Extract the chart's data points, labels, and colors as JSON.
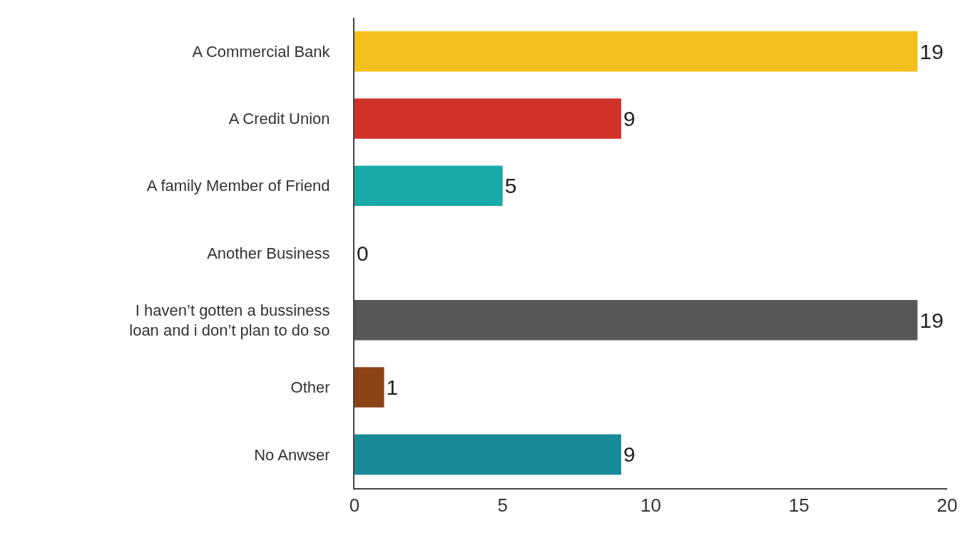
{
  "chart_data": {
    "type": "bar",
    "orientation": "horizontal",
    "categories": [
      "A Commercial Bank",
      "A Credit Union",
      "A family Member of Friend",
      "Another Business",
      "I haven’t gotten a bussiness\nloan and i don’t plan to do so",
      "Other",
      "No Anwser"
    ],
    "values": [
      19,
      9,
      5,
      0,
      19,
      1,
      9
    ],
    "colors": [
      "#f4c01e",
      "#d0322a",
      "#17aaa8",
      "#17aaa8",
      "#58585b",
      "#8b4216",
      "#1a8a98"
    ],
    "xlim": [
      0,
      20
    ],
    "xticks": [
      0,
      5,
      10,
      15,
      20
    ],
    "data_labels": true
  }
}
